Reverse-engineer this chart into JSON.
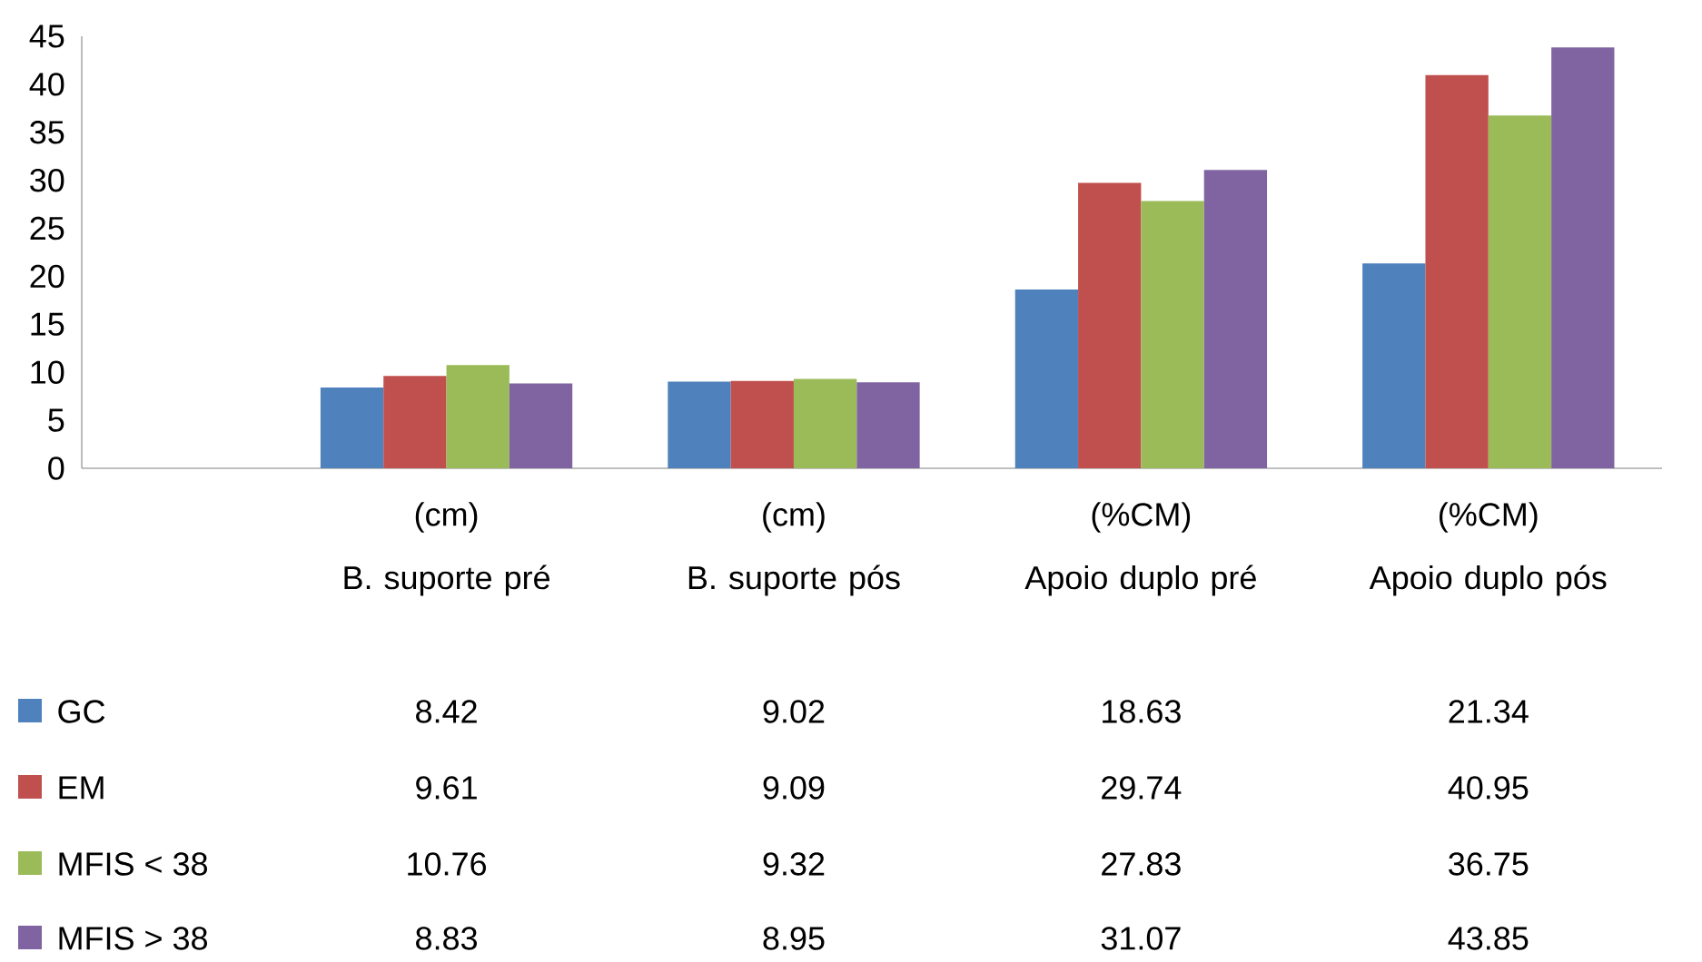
{
  "chart_data": {
    "type": "bar",
    "categories": [
      "B. suporte pré",
      "B. suporte pós",
      "Apoio duplo pré",
      "Apoio duplo pós"
    ],
    "annotations": [
      "(cm)",
      "(cm)",
      "(%CM)",
      "(%CM)"
    ],
    "series": [
      {
        "name": "GC",
        "color": "#4f81bd",
        "values": [
          8.42,
          9.02,
          18.63,
          21.34
        ]
      },
      {
        "name": "EM",
        "color": "#c0504d",
        "values": [
          9.61,
          9.09,
          29.74,
          40.95
        ]
      },
      {
        "name": "MFIS < 38",
        "color": "#9bbb59",
        "values": [
          10.76,
          9.32,
          27.83,
          36.75
        ]
      },
      {
        "name": "MFIS > 38",
        "color": "#8064a2",
        "values": [
          8.83,
          8.95,
          31.07,
          43.85
        ]
      }
    ],
    "ylim": [
      0,
      45
    ],
    "yticks": [
      0,
      5,
      10,
      15,
      20,
      25,
      30,
      35,
      40,
      45
    ],
    "data_labels": true,
    "legend": "bottom",
    "grid": false
  }
}
